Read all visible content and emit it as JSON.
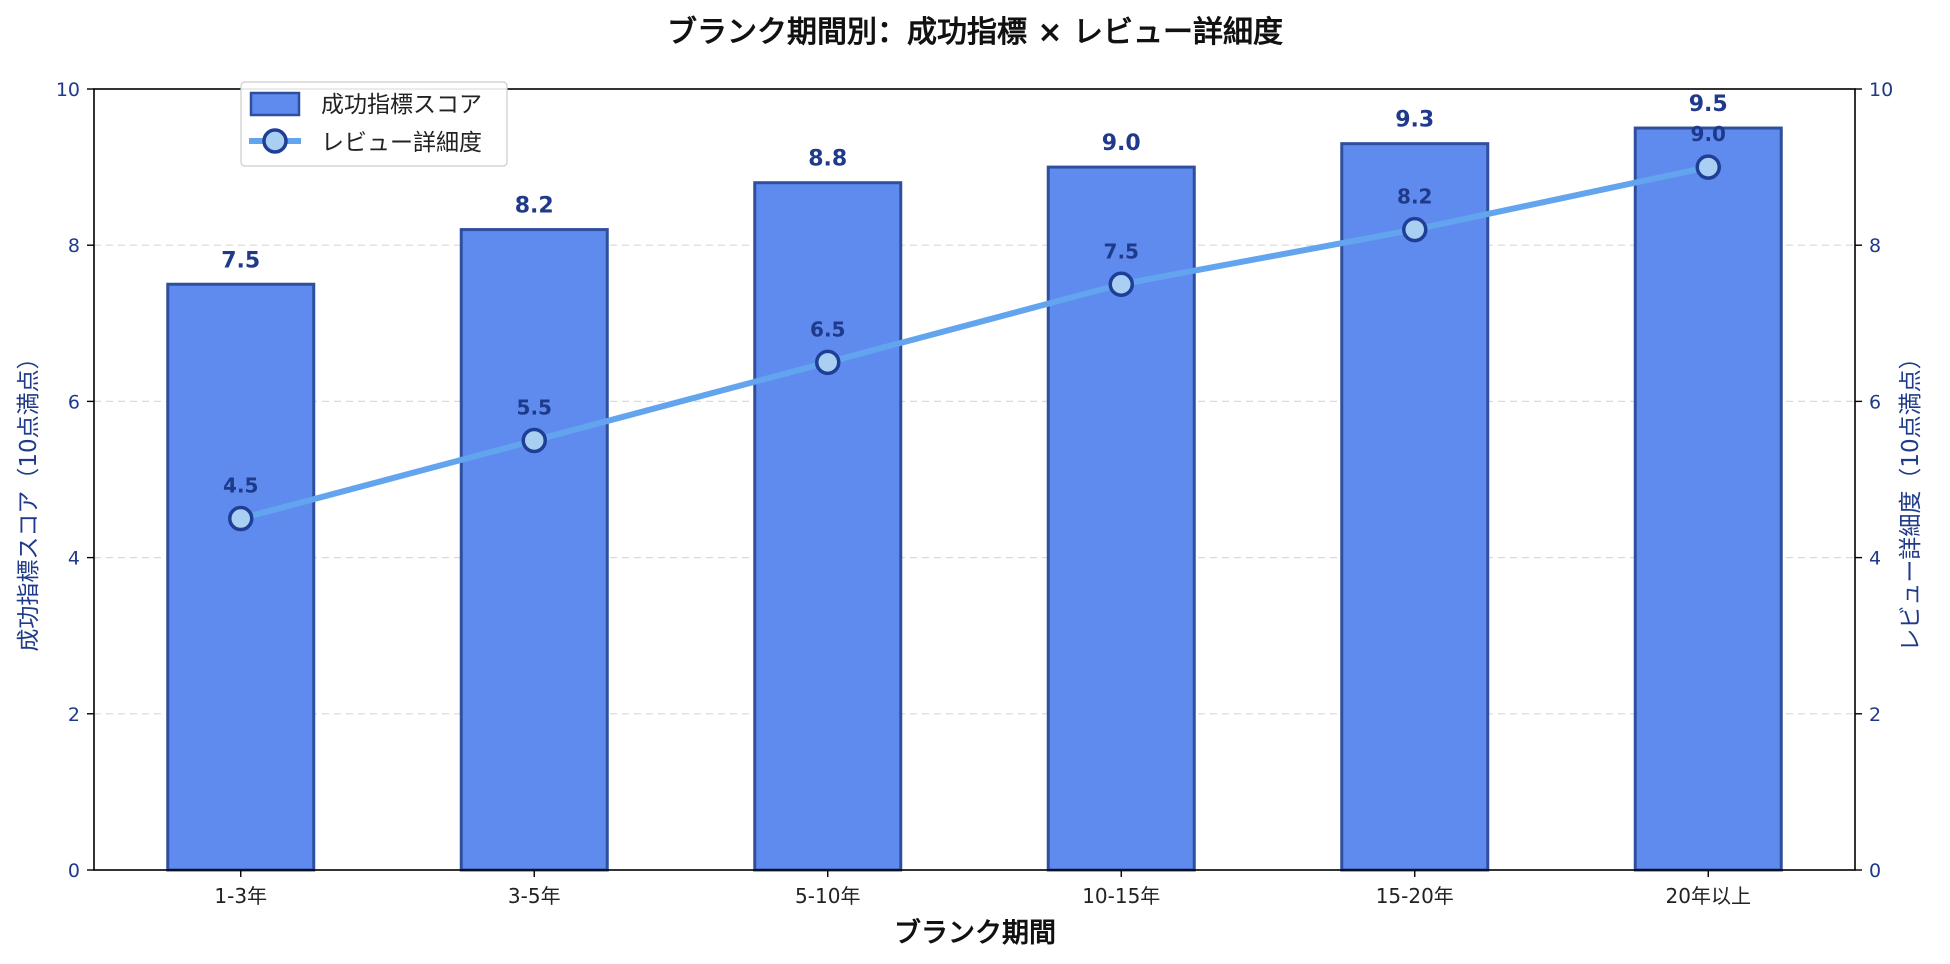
{
  "chart_data": {
    "type": "bar",
    "title": "ブランク期間別：成功指標 × レビュー詳細度",
    "xlabel": "ブランク期間",
    "ylabel_left": "成功指標スコア（10点満点）",
    "ylabel_right": "レビュー詳細度（10点満点）",
    "categories": [
      "1-3年",
      "3-5年",
      "5-10年",
      "10-15年",
      "15-20年",
      "20年以上"
    ],
    "ylim": [
      0,
      10
    ],
    "yticks": [
      0,
      2,
      4,
      6,
      8,
      10
    ],
    "grid": true,
    "legend_position": "top-left",
    "series": [
      {
        "name": "成功指標スコア",
        "type": "bar",
        "axis": "left",
        "values": [
          7.5,
          8.2,
          8.8,
          9.0,
          9.3,
          9.5
        ],
        "labels": [
          "7.5",
          "8.2",
          "8.8",
          "9.0",
          "9.3",
          "9.5"
        ],
        "color": "#5f8bef",
        "edge_color": "#2f4f9e"
      },
      {
        "name": "レビュー詳細度",
        "type": "line",
        "axis": "right",
        "values": [
          4.5,
          5.5,
          6.5,
          7.5,
          8.2,
          9.0
        ],
        "labels": [
          "4.5",
          "5.5",
          "6.5",
          "7.5",
          "8.2",
          "9.0"
        ],
        "color": "#63a4ee",
        "marker_fill": "#a9cff2",
        "marker_edge": "#1f3e96"
      }
    ],
    "colors": {
      "axis_text": "#1f3a8a",
      "label_text": "#1f3a8a"
    }
  }
}
